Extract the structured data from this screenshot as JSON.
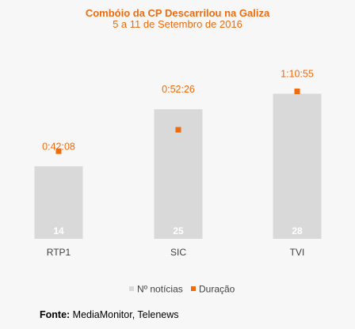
{
  "chart_data": {
    "type": "bar",
    "title": "Combóio da CP Descarrilou na Galiza",
    "subtitle": "5 a 11 de Setembro de 2016",
    "categories": [
      "RTP1",
      "SIC",
      "TVI"
    ],
    "series": [
      {
        "name": "Nº notícias",
        "values": [
          14,
          25,
          28
        ],
        "labels": [
          "14",
          "25",
          "28"
        ]
      },
      {
        "name": "Duração",
        "values": [
          2528,
          3146,
          4255
        ],
        "labels": [
          "0:42:08",
          "0:52:26",
          "1:10:55"
        ]
      }
    ],
    "ylim": [
      0,
      38
    ],
    "grid": false,
    "legend": "bottom"
  },
  "colors": {
    "bar": "#d9d9d9",
    "marker": "#ef6b0c",
    "title": "#ef6b0c",
    "count_label": "#ffffff",
    "axis_label": "#404040"
  },
  "source": {
    "label": "Fonte:",
    "text": "MediaMonitor, Telenews"
  }
}
